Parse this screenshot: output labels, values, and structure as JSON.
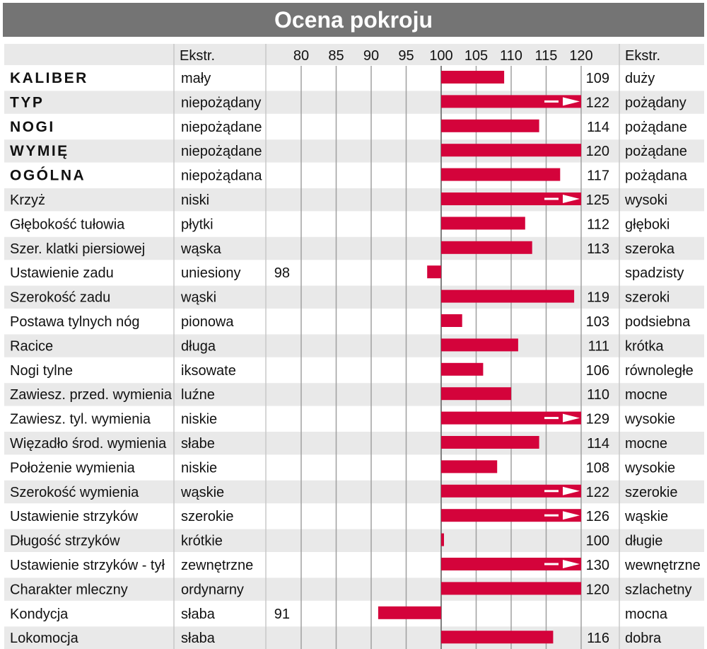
{
  "title": "Ocena pokroju",
  "header": {
    "col_extr_left": "Ekstr.",
    "col_extr_right": "Ekstr."
  },
  "colors": {
    "bar": "#d4033b",
    "title_bg": "#747474",
    "row_shade": "#e9e9e9",
    "grid": "#a0a0a0"
  },
  "chart_data": {
    "type": "bar",
    "orientation": "horizontal",
    "baseline": 100,
    "xlim": [
      75,
      120
    ],
    "xticks": [
      80,
      85,
      90,
      95,
      100,
      105,
      110,
      115,
      120
    ],
    "overflow_marker": "arrow at 120 for values above 120",
    "rows": [
      {
        "label": "KALIBER",
        "bold": true,
        "left": "mały",
        "right": "duży",
        "value": 109
      },
      {
        "label": "TYP",
        "bold": true,
        "left": "niepożądany",
        "right": "pożądany",
        "value": 122
      },
      {
        "label": "NOGI",
        "bold": true,
        "left": "niepożądane",
        "right": "pożądane",
        "value": 114
      },
      {
        "label": "WYMIĘ",
        "bold": true,
        "left": "niepożądane",
        "right": "pożądane",
        "value": 120
      },
      {
        "label": "OGÓLNA",
        "bold": true,
        "left": "niepożądana",
        "right": "pożądana",
        "value": 117
      },
      {
        "label": "Krzyż",
        "bold": false,
        "left": "niski",
        "right": "wysoki",
        "value": 125
      },
      {
        "label": "Głębokość tułowia",
        "bold": false,
        "left": "płytki",
        "right": "głęboki",
        "value": 112
      },
      {
        "label": "Szer. klatki piersiowej",
        "bold": false,
        "left": "wąska",
        "right": "szeroka",
        "value": 113
      },
      {
        "label": "Ustawienie zadu",
        "bold": false,
        "left": "uniesiony",
        "right": "spadzisty",
        "value": 98
      },
      {
        "label": "Szerokość zadu",
        "bold": false,
        "left": "wąski",
        "right": "szeroki",
        "value": 119
      },
      {
        "label": "Postawa tylnych nóg",
        "bold": false,
        "left": "pionowa",
        "right": "podsiebna",
        "value": 103
      },
      {
        "label": "Racice",
        "bold": false,
        "left": "długa",
        "right": "krótka",
        "value": 111
      },
      {
        "label": "Nogi tylne",
        "bold": false,
        "left": "iksowate",
        "right": "równoległe",
        "value": 106
      },
      {
        "label": "Zawiesz. przed. wymienia",
        "bold": false,
        "left": "luźne",
        "right": "mocne",
        "value": 110
      },
      {
        "label": "Zawiesz. tyl. wymienia",
        "bold": false,
        "left": "niskie",
        "right": "wysokie",
        "value": 129
      },
      {
        "label": "Więzadło środ. wymienia",
        "bold": false,
        "left": "słabe",
        "right": "mocne",
        "value": 114
      },
      {
        "label": "Położenie wymienia",
        "bold": false,
        "left": "niskie",
        "right": "wysokie",
        "value": 108
      },
      {
        "label": "Szerokość wymienia",
        "bold": false,
        "left": "wąskie",
        "right": "szerokie",
        "value": 122
      },
      {
        "label": "Ustawienie strzyków",
        "bold": false,
        "left": "szerokie",
        "right": "wąskie",
        "value": 126
      },
      {
        "label": "Długość strzyków",
        "bold": false,
        "left": "krótkie",
        "right": "długie",
        "value": 100
      },
      {
        "label": "Ustawienie strzyków - tył",
        "bold": false,
        "left": "zewnętrzne",
        "right": "wewnętrzne",
        "value": 130
      },
      {
        "label": "Charakter mleczny",
        "bold": false,
        "left": "ordynarny",
        "right": "szlachetny",
        "value": 120
      },
      {
        "label": "Kondycja",
        "bold": false,
        "left": "słaba",
        "right": "mocna",
        "value": 91
      },
      {
        "label": "Lokomocja",
        "bold": false,
        "left": "słaba",
        "right": "dobra",
        "value": 116
      }
    ]
  }
}
